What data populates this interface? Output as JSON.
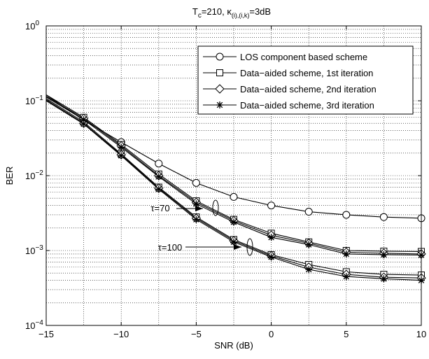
{
  "chart_data": {
    "type": "line",
    "title": {
      "main": "T",
      "sub_c": "c",
      "eq1": "=210, κ",
      "sub_idx": "(i),(i,k)",
      "eq2": "=3dB"
    },
    "xlabel": "SNR (dB)",
    "ylabel": "BER",
    "xlim": [
      -15,
      10
    ],
    "ylim_log10": [
      -4,
      0
    ],
    "y_scale": "log",
    "grid": "dotted, major and minor",
    "legend_position": "top-right",
    "x_ticks": [
      {
        "value": -15,
        "label": "−15"
      },
      {
        "value": -10,
        "label": "−10"
      },
      {
        "value": -5,
        "label": "−5"
      },
      {
        "value": 0,
        "label": "0"
      },
      {
        "value": 5,
        "label": "5"
      },
      {
        "value": 10,
        "label": "10"
      }
    ],
    "y_ticks": [
      {
        "exp": 0,
        "base": "10",
        "sup": "0"
      },
      {
        "exp": -1,
        "base": "10",
        "sup": "−1"
      },
      {
        "exp": -2,
        "base": "10",
        "sup": "−2"
      },
      {
        "exp": -3,
        "base": "10",
        "sup": "−3"
      },
      {
        "exp": -4,
        "base": "10",
        "sup": "−4"
      }
    ],
    "annotations": [
      {
        "id": "tau70",
        "text": "τ=70",
        "x": -2.4,
        "y": 0.0031
      },
      {
        "id": "tau100",
        "text": "τ=100",
        "x": -1.0,
        "y": 0.00108
      }
    ],
    "series": [
      {
        "name": "LOS component based scheme",
        "marker": "circle",
        "x": [
          -15,
          -12.5,
          -10,
          -7.5,
          -5,
          -2.5,
          0,
          2.5,
          5,
          7.5,
          10
        ],
        "y": [
          0.12,
          0.055,
          0.028,
          0.0145,
          0.008,
          0.0052,
          0.004,
          0.0033,
          0.003,
          0.0028,
          0.0027
        ]
      },
      {
        "name": "Data−aided scheme, 1st iteration",
        "marker": "square",
        "x": [
          -15,
          -12.5,
          -10,
          -7.5,
          -5,
          -2.5,
          0,
          2.5,
          5,
          7.5,
          10,
          -15,
          -12.5,
          -10,
          -7.5,
          -5,
          -2.5,
          0,
          2.5,
          5,
          7.5,
          10
        ],
        "y": [
          0.12,
          0.06,
          0.026,
          0.0105,
          0.0046,
          0.0026,
          0.0017,
          0.0013,
          0.001,
          0.00098,
          0.00097,
          0.107,
          0.052,
          0.0195,
          0.007,
          0.0028,
          0.0014,
          0.00088,
          0.00065,
          0.00052,
          0.00048,
          0.00047
        ]
      },
      {
        "name": "Data−aided scheme, 2nd  iteration",
        "marker": "diamond",
        "x": [
          -15,
          -12.5,
          -10,
          -7.5,
          -5,
          -2.5,
          0,
          2.5,
          5,
          7.5,
          10,
          -15,
          -12.5,
          -10,
          -7.5,
          -5,
          -2.5,
          0,
          2.5,
          5,
          7.5,
          10
        ],
        "y": [
          0.115,
          0.058,
          0.025,
          0.01,
          0.0044,
          0.0025,
          0.0016,
          0.00125,
          0.00095,
          0.00092,
          0.0009,
          0.103,
          0.05,
          0.019,
          0.0068,
          0.0027,
          0.00135,
          0.00085,
          0.0006,
          0.00048,
          0.00044,
          0.00043
        ]
      },
      {
        "name": "Data−aided scheme, 3rd iteration",
        "marker": "star",
        "x": [
          -15,
          -12.5,
          -10,
          -7.5,
          -5,
          -2.5,
          0,
          2.5,
          5,
          7.5,
          10,
          -15,
          -12.5,
          -10,
          -7.5,
          -5,
          -2.5,
          0,
          2.5,
          5,
          7.5,
          10
        ],
        "y": [
          0.112,
          0.056,
          0.024,
          0.0097,
          0.0042,
          0.0024,
          0.0015,
          0.0012,
          0.0009,
          0.00088,
          0.00087,
          0.1,
          0.049,
          0.0185,
          0.0066,
          0.0026,
          0.0013,
          0.00082,
          0.00056,
          0.00045,
          0.00042,
          0.0004
        ]
      }
    ]
  }
}
